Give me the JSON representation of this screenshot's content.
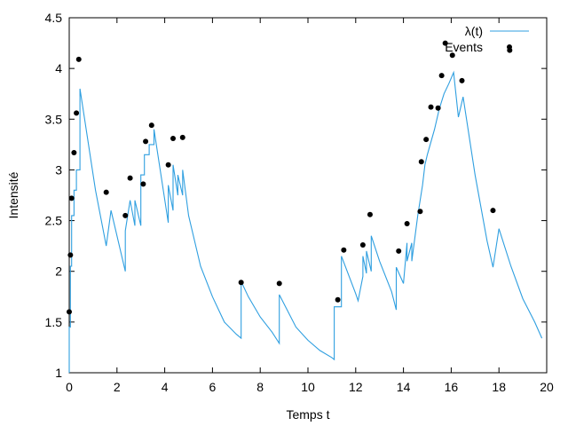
{
  "chart_data": {
    "type": "line",
    "xlabel": "Temps t",
    "ylabel": "Intensité",
    "xlim": [
      0,
      20
    ],
    "ylim": [
      1,
      4.5
    ],
    "x_ticks": [
      0,
      2,
      4,
      6,
      8,
      10,
      12,
      14,
      16,
      18,
      20
    ],
    "y_ticks": [
      1,
      1.5,
      2,
      2.5,
      3,
      3.5,
      4,
      4.5
    ],
    "grid": false,
    "legend_position": "top-right",
    "series": [
      {
        "name": "λ(t)",
        "kind": "line",
        "color": "#2f9fe0",
        "x": [
          0.0,
          0.0,
          0.05,
          0.05,
          0.1,
          0.1,
          0.2,
          0.2,
          0.3,
          0.3,
          0.45,
          0.45,
          1.1,
          1.55,
          1.75,
          2.35,
          2.35,
          2.55,
          2.75,
          2.75,
          3.0,
          3.0,
          3.15,
          3.15,
          3.35,
          3.35,
          3.55,
          3.55,
          4.15,
          4.15,
          4.35,
          4.35,
          4.55,
          4.55,
          4.75,
          4.75,
          5.0,
          5.5,
          6.0,
          6.5,
          7.0,
          7.2,
          7.2,
          7.5,
          8.0,
          8.5,
          8.8,
          8.8,
          9.5,
          10.0,
          10.5,
          11.0,
          11.1,
          11.1,
          11.4,
          11.4,
          12.0,
          12.1,
          12.3,
          12.3,
          12.45,
          12.45,
          12.65,
          12.65,
          13.0,
          13.5,
          13.7,
          13.7,
          14.0,
          14.15,
          14.15,
          14.35,
          14.35,
          14.6,
          14.6,
          14.8,
          14.8,
          14.9,
          15.0,
          15.3,
          15.5,
          15.7,
          15.9,
          16.1,
          16.1,
          16.3,
          16.3,
          16.5,
          16.5,
          17.0,
          17.5,
          17.75,
          17.75,
          18.0,
          18.5,
          19.0,
          19.5,
          19.8
        ],
        "y": [
          1.0,
          1.45,
          1.45,
          2.05,
          2.05,
          2.55,
          2.55,
          2.8,
          2.8,
          3.0,
          3.0,
          3.8,
          2.8,
          2.25,
          2.6,
          2.0,
          2.4,
          2.7,
          2.45,
          2.7,
          2.45,
          2.95,
          2.95,
          3.15,
          3.15,
          3.25,
          3.25,
          3.4,
          2.48,
          2.85,
          2.6,
          3.05,
          2.75,
          2.95,
          2.75,
          3.0,
          2.55,
          2.05,
          1.75,
          1.5,
          1.38,
          1.34,
          1.9,
          1.75,
          1.55,
          1.4,
          1.29,
          1.77,
          1.45,
          1.32,
          1.22,
          1.15,
          1.13,
          1.65,
          1.65,
          2.15,
          1.78,
          1.71,
          1.95,
          2.15,
          1.98,
          2.2,
          2.0,
          2.35,
          2.1,
          1.8,
          1.62,
          2.04,
          1.88,
          2.28,
          2.1,
          2.28,
          2.1,
          2.55,
          2.55,
          2.85,
          2.85,
          3.05,
          3.15,
          3.4,
          3.6,
          3.75,
          3.85,
          3.96,
          3.96,
          3.52,
          3.52,
          3.72,
          3.72,
          2.95,
          2.3,
          2.04,
          2.04,
          2.42,
          2.05,
          1.73,
          1.5,
          1.34
        ]
      },
      {
        "name": "Events",
        "kind": "scatter",
        "color": "#000000",
        "x": [
          0.0,
          0.05,
          0.1,
          0.2,
          0.3,
          0.4,
          1.55,
          2.35,
          2.55,
          3.1,
          3.2,
          3.45,
          4.15,
          4.35,
          4.75,
          7.2,
          8.8,
          11.25,
          11.5,
          12.3,
          12.6,
          13.8,
          14.15,
          14.7,
          14.75,
          14.95,
          15.15,
          15.45,
          15.6,
          15.75,
          16.05,
          16.45,
          17.75,
          18.45
        ],
        "y": [
          1.6,
          2.16,
          2.72,
          3.17,
          3.56,
          4.09,
          2.78,
          2.55,
          2.92,
          2.86,
          3.28,
          3.44,
          3.05,
          3.31,
          3.32,
          1.89,
          1.88,
          1.72,
          2.21,
          2.26,
          2.56,
          2.2,
          2.47,
          2.59,
          3.08,
          3.3,
          3.62,
          3.61,
          3.93,
          4.25,
          4.13,
          3.88,
          2.6,
          4.18
        ]
      }
    ]
  }
}
